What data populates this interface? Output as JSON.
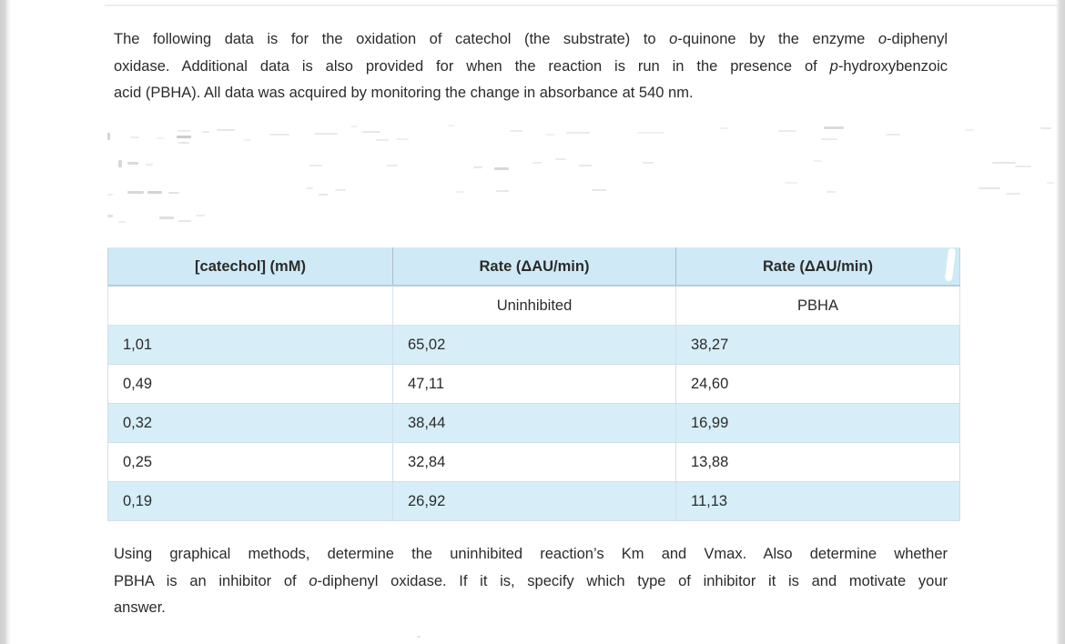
{
  "colors": {
    "table_header_bg": "#cfeaf6",
    "table_alt_row_bg": "#d7eef8",
    "text": "#2b2b2b",
    "page_edge": "#d4d4d4"
  },
  "intro_paragraph": {
    "lines": [
      [
        {
          "t": "The following data is for the oxidation of catechol (the substrate) to "
        },
        {
          "t": "o",
          "i": true
        },
        {
          "t": "-quinone by the enzyme "
        },
        {
          "t": "o",
          "i": true
        },
        {
          "t": "-diphenyl"
        }
      ],
      [
        {
          "t": "oxidase. Additional data is also provided for when the reaction is run in the presence of "
        },
        {
          "t": "p",
          "i": true
        },
        {
          "t": "-hydroxybenzoic"
        }
      ],
      [
        {
          "t": "acid (PBHA). All data was acquired by monitoring the change in absorbance at 540 nm."
        }
      ]
    ]
  },
  "table": {
    "headers": [
      "[catechol] (mM)",
      "Rate (ΔAU/min)",
      "Rate (ΔAU/min)"
    ],
    "subheaders": [
      "",
      "Uninhibited",
      "PBHA"
    ],
    "rows": [
      [
        "1,01",
        "65,02",
        "38,27"
      ],
      [
        "0,49",
        "47,11",
        "24,60"
      ],
      [
        "0,32",
        "38,44",
        "16,99"
      ],
      [
        "0,25",
        "32,84",
        "13,88"
      ],
      [
        "0,19",
        "26,92",
        "11,13"
      ]
    ]
  },
  "question_paragraph": {
    "lines": [
      [
        {
          "t": "Using graphical methods, determine the uninhibited reaction’s Km and Vmax. Also determine whether"
        }
      ],
      [
        {
          "t": "PBHA is an inhibitor of "
        },
        {
          "t": "o",
          "i": true
        },
        {
          "t": "-diphenyl oxidase. If it is, specify which type of inhibitor it is and motivate your"
        }
      ],
      [
        {
          "t": "answer."
        }
      ]
    ]
  }
}
